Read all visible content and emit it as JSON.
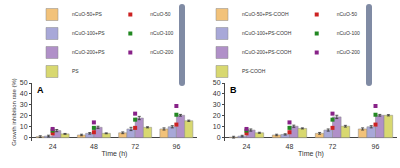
{
  "chart_data": [
    {
      "type": "bar",
      "title": "A",
      "xlabel": "Time (h)",
      "ylabel": "Growth inhibition rate (%)",
      "categories": [
        "24",
        "48",
        "72",
        "96"
      ],
      "series": [
        {
          "name": "nCuO-50+PS",
          "color": "#f2c27a",
          "values": [
            1.0,
            2.5,
            4.5,
            8.0
          ],
          "errors": [
            0.8,
            0.7,
            0.8,
            1.0
          ]
        },
        {
          "name": "nCuO-100+PS",
          "color": "#a8a8d8",
          "values": [
            1.5,
            4.0,
            8.0,
            10.0
          ],
          "errors": [
            0.8,
            0.7,
            1.5,
            1.0
          ]
        },
        {
          "name": "nCuO-200+PS",
          "color": "#b090c8",
          "values": [
            6.5,
            9.5,
            18.0,
            20.5
          ],
          "errors": [
            1.0,
            1.0,
            1.5,
            0.8
          ]
        },
        {
          "name": "PS",
          "color": "#d8d870",
          "values": [
            3.5,
            4.0,
            9.5,
            15.5
          ],
          "errors": [
            0.4,
            0.4,
            0.5,
            0.6
          ]
        },
        {
          "name": "nCuO-50",
          "type": "scatter",
          "marker": "square",
          "color": "#cc2222",
          "values": [
            4.0,
            5.0,
            9.0,
            12.0
          ]
        },
        {
          "name": "nCuO-100",
          "type": "scatter",
          "marker": "square",
          "color": "#228822",
          "values": [
            6.5,
            9.0,
            16.5,
            21.0
          ]
        },
        {
          "name": "nCuO-200",
          "type": "scatter",
          "marker": "square",
          "color": "#882288",
          "values": [
            8.0,
            14.0,
            22.0,
            29.0
          ]
        }
      ],
      "ylim": [
        -3,
        50
      ],
      "yticks": [
        0,
        10,
        20,
        30,
        40,
        50
      ],
      "grid": false,
      "legend": "upper left"
    },
    {
      "type": "bar",
      "title": "B",
      "xlabel": "Time (h)",
      "categories": [
        "24",
        "48",
        "72",
        "96"
      ],
      "series": [
        {
          "name": "nCuO-50+PS-COOH",
          "color": "#f2c27a",
          "values": [
            0.5,
            2.5,
            4.0,
            8.0
          ],
          "errors": [
            0.8,
            0.7,
            0.8,
            1.0
          ]
        },
        {
          "name": "nCuO-100+PS-COOH",
          "color": "#a8a8d8",
          "values": [
            1.5,
            3.0,
            7.0,
            10.0
          ],
          "errors": [
            0.7,
            0.6,
            1.0,
            1.0
          ]
        },
        {
          "name": "nCuO-200+PS-COOH",
          "color": "#b090c8",
          "values": [
            7.0,
            10.5,
            19.0,
            20.5
          ],
          "errors": [
            1.0,
            1.0,
            1.5,
            0.8
          ]
        },
        {
          "name": "PS-COOH",
          "color": "#d8d870",
          "values": [
            4.5,
            8.5,
            10.5,
            20.5
          ],
          "errors": [
            0.5,
            0.5,
            0.8,
            0.6
          ]
        },
        {
          "name": "nCuO-50",
          "type": "scatter",
          "marker": "square",
          "color": "#cc2222",
          "values": [
            4.0,
            5.0,
            9.0,
            12.0
          ]
        },
        {
          "name": "nCuO-100",
          "type": "scatter",
          "marker": "square",
          "color": "#228822",
          "values": [
            6.5,
            9.0,
            16.5,
            21.0
          ]
        },
        {
          "name": "nCuO-200",
          "type": "scatter",
          "marker": "square",
          "color": "#882288",
          "values": [
            8.0,
            14.0,
            22.0,
            29.0
          ]
        }
      ],
      "ylim": [
        -3,
        50
      ],
      "yticks": [
        0,
        10,
        20,
        30,
        40,
        50
      ],
      "grid": false,
      "legend": "upper left"
    }
  ]
}
